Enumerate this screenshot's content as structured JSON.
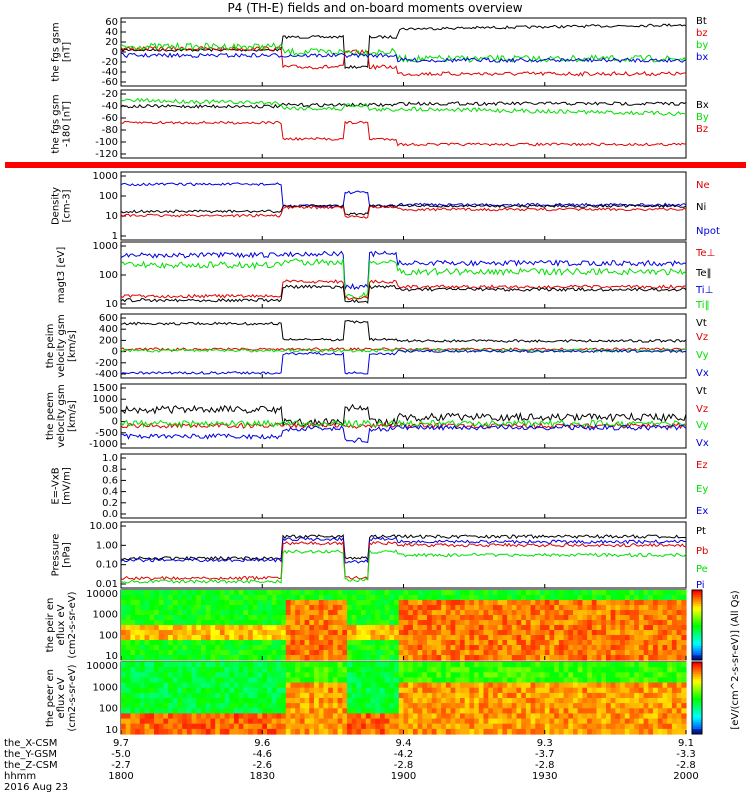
{
  "title": "P4 (TH-E) fields and on-board moments overview",
  "date": "2016 Aug 23",
  "footer": {
    "rows": [
      {
        "label": "the_X-CSM",
        "values": [
          "9.7",
          "9.6",
          "9.4",
          "9.3",
          "9.1"
        ]
      },
      {
        "label": "-5.0",
        "values": []
      },
      {
        "label": "the_Y-GSM",
        "values": [
          "-5.0",
          "-4.6",
          "-4.2",
          "-3.7",
          "-3.3"
        ]
      },
      {
        "label": "the_Z-CSM",
        "values": [
          "-2.7",
          "-2.6",
          "-2.8",
          "-2.8",
          "-2.8"
        ]
      },
      {
        "label": "hhmm",
        "values": [
          "1800",
          "1830",
          "1900",
          "1930",
          "2000"
        ]
      }
    ]
  },
  "cbar_label": "[eV/(cm^2-s-sr-eV)] (All Qs)",
  "colors": {
    "black": "#000000",
    "red": "#e00000",
    "green": "#00e000",
    "blue": "#0000e0",
    "bar": "#ff0000"
  },
  "chart_data": [
    {
      "type": "line",
      "panel": "fgs-gsm",
      "ylabel": "the fgs gsm [nT]",
      "yticks": [
        "60",
        "40",
        "20",
        "0",
        "-20",
        "-40",
        "-60"
      ],
      "ylim": [
        -60,
        65
      ],
      "series": [
        {
          "name": "Bt",
          "color": "black"
        },
        {
          "name": "bz",
          "color": "red"
        },
        {
          "name": "by",
          "color": "green"
        },
        {
          "name": "bx",
          "color": "blue"
        }
      ]
    },
    {
      "type": "line",
      "panel": "fgs-gsm-b",
      "ylabel": "the fgs gsm -180 [nT]",
      "yticks": [
        "-20",
        "-40",
        "-60",
        "-80",
        "-100",
        "-120"
      ],
      "ylim": [
        -130,
        5
      ],
      "series": [
        {
          "name": "Bx",
          "color": "black"
        },
        {
          "name": "By",
          "color": "green"
        },
        {
          "name": "Bz",
          "color": "red"
        }
      ]
    },
    {
      "type": "line",
      "panel": "density",
      "ylabel": "Density [cm-3]",
      "log": true,
      "yticks": [
        "1000",
        "100",
        "10",
        "1"
      ],
      "series": [
        {
          "name": "Ne",
          "color": "red"
        },
        {
          "name": "Ni",
          "color": "black"
        },
        {
          "name": "Npot",
          "color": "blue"
        }
      ]
    },
    {
      "type": "line",
      "panel": "temp",
      "ylabel": "magt3 [eV]",
      "log": true,
      "yticks": [
        "1000",
        "100",
        "10"
      ],
      "series": [
        {
          "name": "Te⊥",
          "color": "red"
        },
        {
          "name": "Te‖",
          "color": "black"
        },
        {
          "name": "Ti⊥",
          "color": "blue"
        },
        {
          "name": "Ti‖",
          "color": "green"
        }
      ]
    },
    {
      "type": "line",
      "panel": "vel-i",
      "ylabel": "the peim velocity gsm [km/s]",
      "yticks": [
        "600",
        "400",
        "200",
        "0",
        "-200",
        "-400"
      ],
      "ylim": [
        -450,
        620
      ],
      "series": [
        {
          "name": "Vt",
          "color": "black"
        },
        {
          "name": "Vz",
          "color": "red"
        },
        {
          "name": "Vy",
          "color": "green"
        },
        {
          "name": "Vx",
          "color": "blue"
        }
      ]
    },
    {
      "type": "line",
      "panel": "vel-e",
      "ylabel": "the peem velocity gsm [km/s]",
      "yticks": [
        "1500",
        "1000",
        "500",
        "0",
        "-500",
        "-1000"
      ],
      "ylim": [
        -1050,
        1600
      ],
      "series": [
        {
          "name": "Vt",
          "color": "black"
        },
        {
          "name": "Vz",
          "color": "red"
        },
        {
          "name": "Vy",
          "color": "green"
        },
        {
          "name": "Vx",
          "color": "blue"
        }
      ]
    },
    {
      "type": "line",
      "panel": "efield",
      "ylabel": "E=-VxB [mV/m]",
      "yticks": [
        "1.0",
        "0.8",
        "0.6",
        "0.4",
        "0.2",
        "0.0"
      ],
      "ylim": [
        0,
        1
      ],
      "series": [
        {
          "name": "Ez",
          "color": "red"
        },
        {
          "name": "Ey",
          "color": "green"
        },
        {
          "name": "Ex",
          "color": "blue"
        }
      ]
    },
    {
      "type": "line",
      "panel": "pressure",
      "ylabel": "Pressure [nPa]",
      "log": true,
      "yticks": [
        "10.00",
        "1.00",
        "0.10",
        "0.01"
      ],
      "series": [
        {
          "name": "Pt",
          "color": "black"
        },
        {
          "name": "Pb",
          "color": "red"
        },
        {
          "name": "Pe",
          "color": "green"
        },
        {
          "name": "Pi",
          "color": "blue"
        }
      ]
    },
    {
      "type": "heatmap",
      "panel": "peir",
      "ylabel": "the peir en eflux eV (cm2-s-sr-eV)",
      "log": true,
      "yticks": [
        "10000",
        "1000",
        "100",
        "10"
      ]
    },
    {
      "type": "heatmap",
      "panel": "peer",
      "ylabel": "the peer en eflux eV (cm2-s-sr-eV)",
      "log": true,
      "yticks": [
        "10000",
        "1000",
        "100",
        "10"
      ]
    }
  ]
}
